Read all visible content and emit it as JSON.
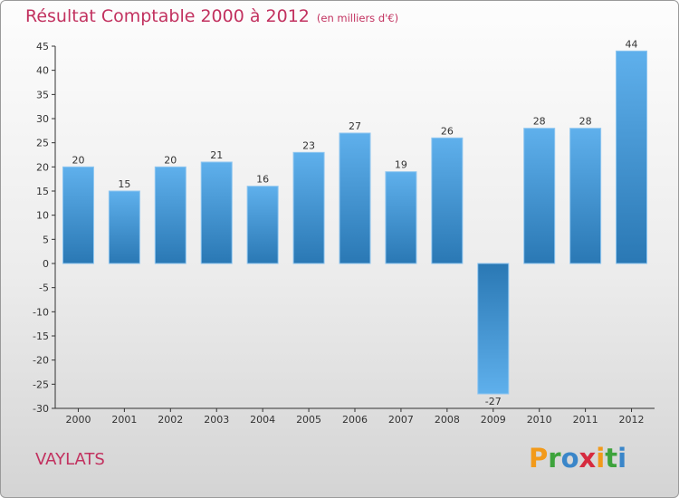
{
  "header": {
    "title": "Résultat Comptable 2000 à 2012",
    "unit": "(en milliers d'€)"
  },
  "footer": {
    "town": "VAYLATS",
    "logo": "Proxiti"
  },
  "colors": {
    "title": "#c2315f",
    "bar_light": "#5fb0ec",
    "bar_dark": "#2a78b4"
  },
  "chart_data": {
    "type": "bar",
    "title": "Résultat Comptable 2000 à 2012",
    "xlabel": "",
    "ylabel": "(en milliers d'€)",
    "categories": [
      "2000",
      "2001",
      "2002",
      "2003",
      "2004",
      "2005",
      "2006",
      "2007",
      "2008",
      "2009",
      "2010",
      "2011",
      "2012"
    ],
    "values": [
      20,
      15,
      20,
      21,
      16,
      23,
      27,
      19,
      26,
      -27,
      28,
      28,
      44
    ],
    "ylim": [
      -30,
      45
    ],
    "yticks": [
      -30,
      -25,
      -20,
      -15,
      -10,
      -5,
      0,
      5,
      10,
      15,
      20,
      25,
      30,
      35,
      40,
      45
    ],
    "grid": false
  }
}
